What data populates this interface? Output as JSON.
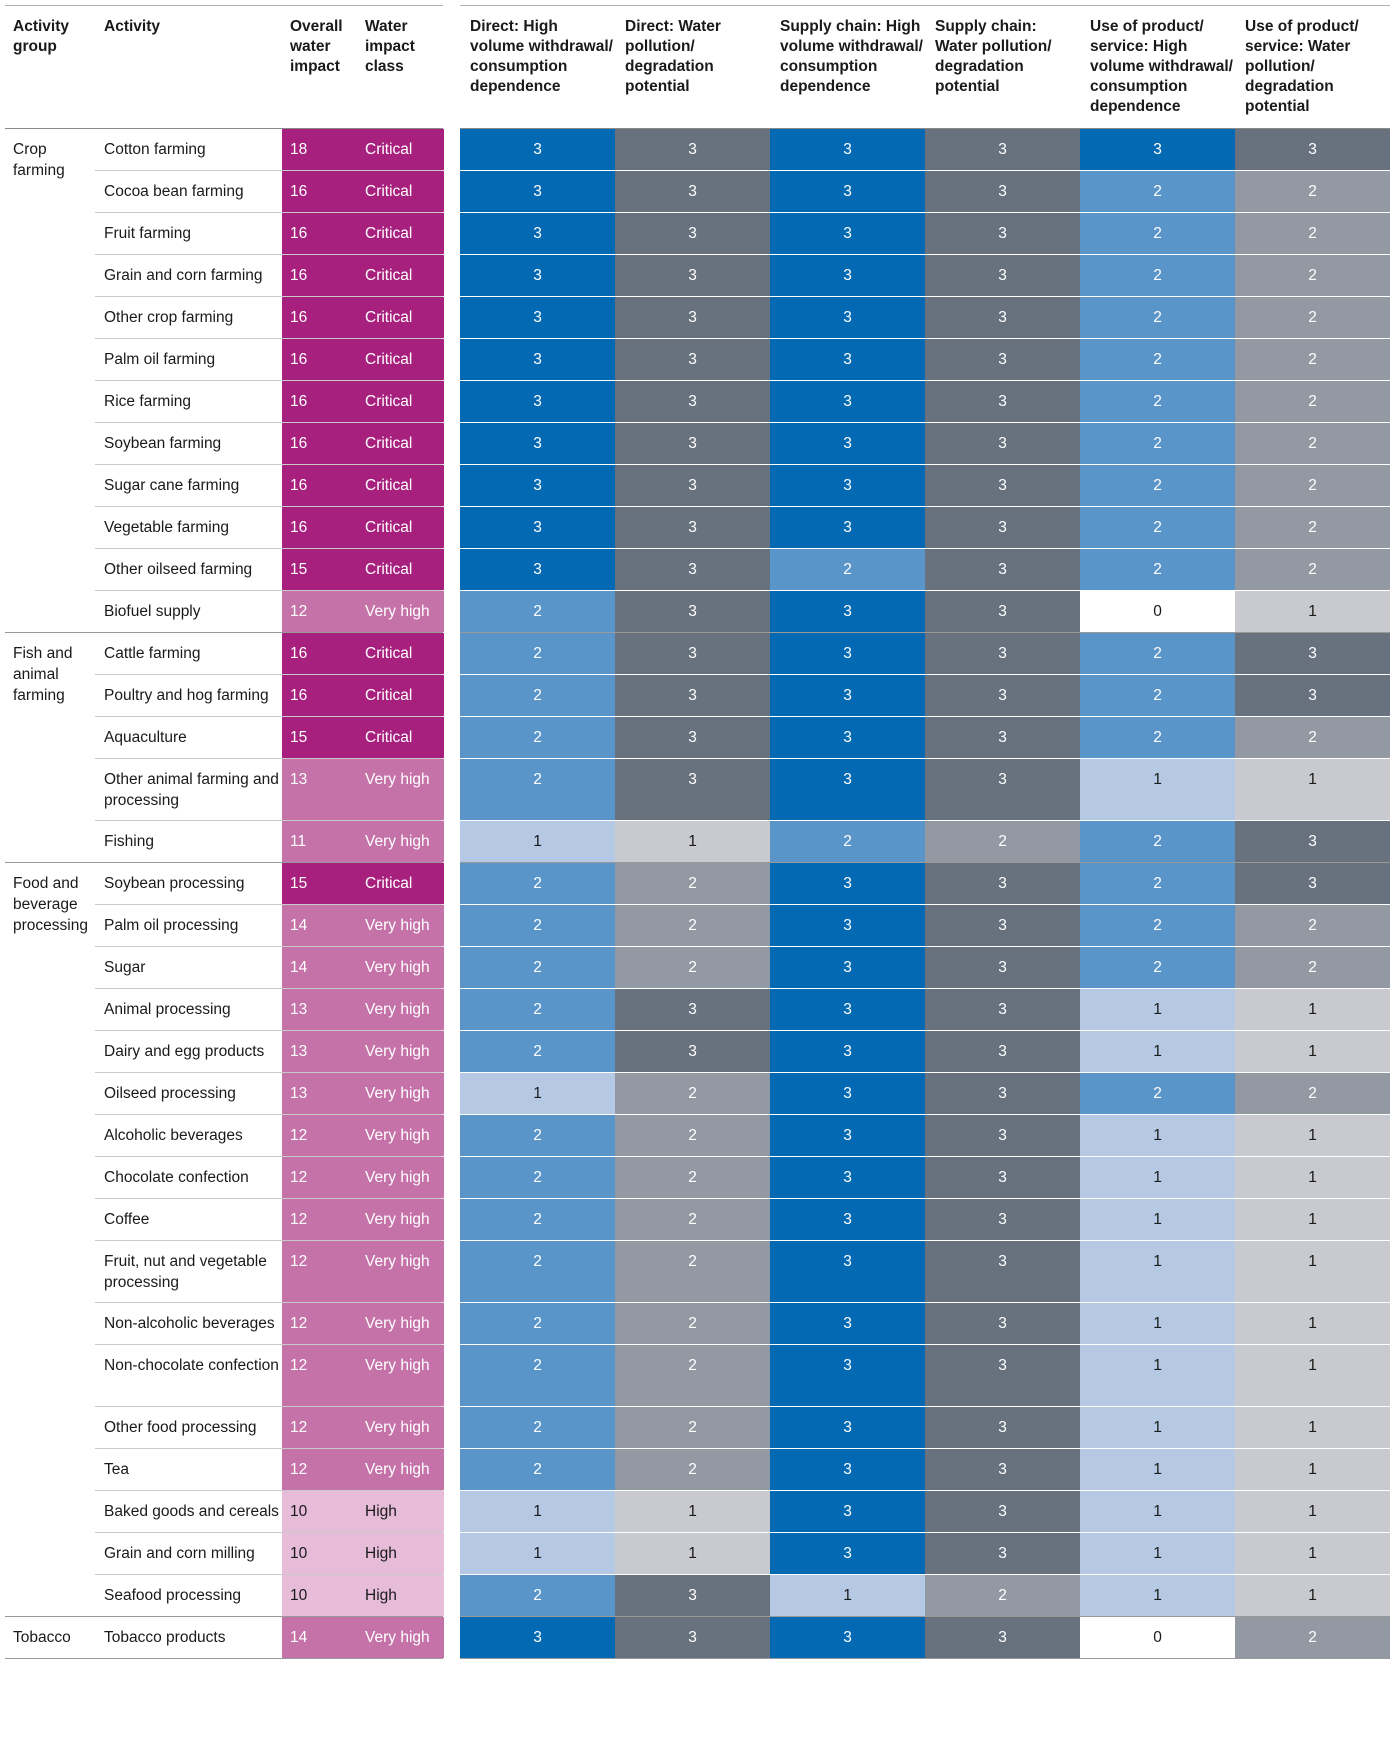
{
  "headers": {
    "activity_group": "Activity group",
    "activity": "Activity",
    "overall": "Overall water impact",
    "class": "Water impact class",
    "metrics": [
      "Direct: High volume withdrawal/ consumption dependence",
      "Direct: Water pollution/ degradation potential",
      "Supply chain: High volume withdrawal/ consumption dependence",
      "Supply chain: Water pollution/ degradation potential",
      "Use of product/ service: High volume withdrawal/ consumption dependence",
      "Use of product/ service: Water pollution/ degradation potential"
    ]
  },
  "colors": {
    "class_Critical": "#a8207e",
    "class_Very high": "#c572a9",
    "class_High": "#e6bcd9",
    "blue_3": "#0469b3",
    "blue_2": "#5a95ca",
    "blue_1": "#b5c9e5",
    "blue_0": "#ffffff",
    "grey_3": "#68717e",
    "grey_2": "#9399a2",
    "grey_1": "#c8cacf",
    "grey_0": "#ffffff"
  },
  "rows": [
    {
      "group": "Crop farming",
      "activity": "Cotton farming",
      "overall": "18",
      "class": "Critical",
      "values": [
        "3",
        "3",
        "3",
        "3",
        "3",
        "3"
      ]
    },
    {
      "group": "",
      "activity": "Cocoa bean farming",
      "overall": "16",
      "class": "Critical",
      "values": [
        "3",
        "3",
        "3",
        "3",
        "2",
        "2"
      ]
    },
    {
      "group": "",
      "activity": "Fruit farming",
      "overall": "16",
      "class": "Critical",
      "values": [
        "3",
        "3",
        "3",
        "3",
        "2",
        "2"
      ]
    },
    {
      "group": "",
      "activity": "Grain and corn farming",
      "overall": "16",
      "class": "Critical",
      "values": [
        "3",
        "3",
        "3",
        "3",
        "2",
        "2"
      ]
    },
    {
      "group": "",
      "activity": "Other crop farming",
      "overall": "16",
      "class": "Critical",
      "values": [
        "3",
        "3",
        "3",
        "3",
        "2",
        "2"
      ]
    },
    {
      "group": "",
      "activity": "Palm oil farming",
      "overall": "16",
      "class": "Critical",
      "values": [
        "3",
        "3",
        "3",
        "3",
        "2",
        "2"
      ]
    },
    {
      "group": "",
      "activity": "Rice farming",
      "overall": "16",
      "class": "Critical",
      "values": [
        "3",
        "3",
        "3",
        "3",
        "2",
        "2"
      ]
    },
    {
      "group": "",
      "activity": "Soybean farming",
      "overall": "16",
      "class": "Critical",
      "values": [
        "3",
        "3",
        "3",
        "3",
        "2",
        "2"
      ]
    },
    {
      "group": "",
      "activity": "Sugar cane farming",
      "overall": "16",
      "class": "Critical",
      "values": [
        "3",
        "3",
        "3",
        "3",
        "2",
        "2"
      ]
    },
    {
      "group": "",
      "activity": "Vegetable farming",
      "overall": "16",
      "class": "Critical",
      "values": [
        "3",
        "3",
        "3",
        "3",
        "2",
        "2"
      ]
    },
    {
      "group": "",
      "activity": "Other oilseed farming",
      "overall": "15",
      "class": "Critical",
      "values": [
        "3",
        "3",
        "2",
        "3",
        "2",
        "2"
      ]
    },
    {
      "group": "",
      "activity": "Biofuel supply",
      "overall": "12",
      "class": "Very high",
      "values": [
        "2",
        "3",
        "3",
        "3",
        "0",
        "1"
      ]
    },
    {
      "group": "Fish and animal farming",
      "activity": "Cattle farming",
      "overall": "16",
      "class": "Critical",
      "values": [
        "2",
        "3",
        "3",
        "3",
        "2",
        "3"
      ]
    },
    {
      "group": "",
      "activity": "Poultry and hog farming",
      "overall": "16",
      "class": "Critical",
      "values": [
        "2",
        "3",
        "3",
        "3",
        "2",
        "3"
      ]
    },
    {
      "group": "",
      "activity": "Aquaculture",
      "overall": "15",
      "class": "Critical",
      "values": [
        "2",
        "3",
        "3",
        "3",
        "2",
        "2"
      ]
    },
    {
      "group": "",
      "activity": "Other animal farming and processing",
      "overall": "13",
      "class": "Very high",
      "values": [
        "2",
        "3",
        "3",
        "3",
        "1",
        "1"
      ]
    },
    {
      "group": "",
      "activity": "Fishing",
      "overall": "11",
      "class": "Very high",
      "values": [
        "1",
        "1",
        "2",
        "2",
        "2",
        "3"
      ]
    },
    {
      "group": "Food and beverage processing",
      "activity": "Soybean processing",
      "overall": "15",
      "class": "Critical",
      "values": [
        "2",
        "2",
        "3",
        "3",
        "2",
        "3"
      ]
    },
    {
      "group": "",
      "activity": "Palm oil processing",
      "overall": "14",
      "class": "Very high",
      "values": [
        "2",
        "2",
        "3",
        "3",
        "2",
        "2"
      ]
    },
    {
      "group": "",
      "activity": "Sugar",
      "overall": "14",
      "class": "Very high",
      "values": [
        "2",
        "2",
        "3",
        "3",
        "2",
        "2"
      ]
    },
    {
      "group": "",
      "activity": "Animal processing",
      "overall": "13",
      "class": "Very high",
      "values": [
        "2",
        "3",
        "3",
        "3",
        "1",
        "1"
      ]
    },
    {
      "group": "",
      "activity": "Dairy and egg products",
      "overall": "13",
      "class": "Very high",
      "values": [
        "2",
        "3",
        "3",
        "3",
        "1",
        "1"
      ]
    },
    {
      "group": "",
      "activity": "Oilseed processing",
      "overall": "13",
      "class": "Very high",
      "values": [
        "1",
        "2",
        "3",
        "3",
        "2",
        "2"
      ]
    },
    {
      "group": "",
      "activity": "Alcoholic beverages",
      "overall": "12",
      "class": "Very high",
      "values": [
        "2",
        "2",
        "3",
        "3",
        "1",
        "1"
      ]
    },
    {
      "group": "",
      "activity": "Chocolate confection",
      "overall": "12",
      "class": "Very high",
      "values": [
        "2",
        "2",
        "3",
        "3",
        "1",
        "1"
      ]
    },
    {
      "group": "",
      "activity": "Coffee",
      "overall": "12",
      "class": "Very high",
      "values": [
        "2",
        "2",
        "3",
        "3",
        "1",
        "1"
      ]
    },
    {
      "group": "",
      "activity": "Fruit, nut and vegetable processing",
      "overall": "12",
      "class": "Very high",
      "values": [
        "2",
        "2",
        "3",
        "3",
        "1",
        "1"
      ]
    },
    {
      "group": "",
      "activity": "Non-alcoholic beverages",
      "overall": "12",
      "class": "Very high",
      "values": [
        "2",
        "2",
        "3",
        "3",
        "1",
        "1"
      ]
    },
    {
      "group": "",
      "activity": "Non-chocolate confection",
      "overall": "12",
      "class": "Very high",
      "values": [
        "2",
        "2",
        "3",
        "3",
        "1",
        "1"
      ]
    },
    {
      "group": "",
      "activity": "Other food processing",
      "overall": "12",
      "class": "Very high",
      "values": [
        "2",
        "2",
        "3",
        "3",
        "1",
        "1"
      ]
    },
    {
      "group": "",
      "activity": "Tea",
      "overall": "12",
      "class": "Very high",
      "values": [
        "2",
        "2",
        "3",
        "3",
        "1",
        "1"
      ]
    },
    {
      "group": "",
      "activity": "Baked goods and cereals",
      "overall": "10",
      "class": "High",
      "values": [
        "1",
        "1",
        "3",
        "3",
        "1",
        "1"
      ]
    },
    {
      "group": "",
      "activity": "Grain and corn milling",
      "overall": "10",
      "class": "High",
      "values": [
        "1",
        "1",
        "3",
        "3",
        "1",
        "1"
      ]
    },
    {
      "group": "",
      "activity": "Seafood processing",
      "overall": "10",
      "class": "High",
      "values": [
        "2",
        "3",
        "1",
        "2",
        "1",
        "1"
      ]
    },
    {
      "group": "Tobacco",
      "activity": "Tobacco products",
      "overall": "14",
      "class": "Very high",
      "values": [
        "3",
        "3",
        "3",
        "3",
        "0",
        "2"
      ]
    }
  ]
}
